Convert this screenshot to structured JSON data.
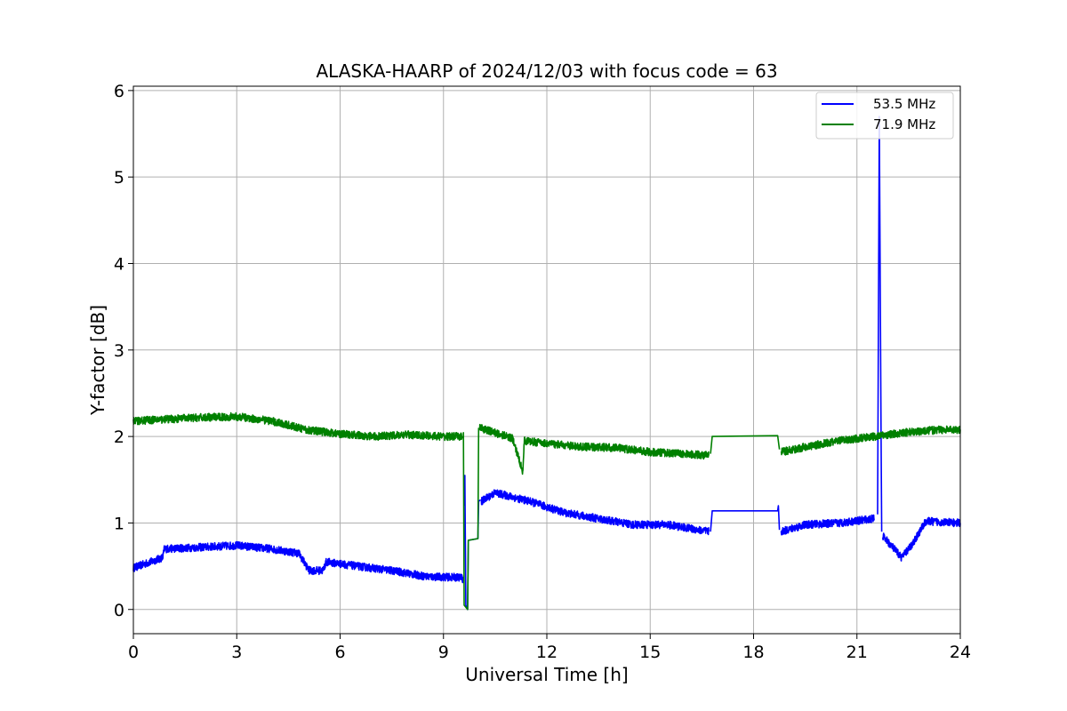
{
  "chart_data": {
    "type": "line",
    "title": "ALASKA-HAARP of 2024/12/03 with focus code = 63",
    "xlabel": "Universal Time [h]",
    "ylabel": "Y-factor [dB]",
    "xlim": [
      0,
      24
    ],
    "ylim": [
      -0.28,
      6.05
    ],
    "xticks": [
      0,
      3,
      6,
      9,
      12,
      15,
      18,
      21,
      24
    ],
    "yticks": [
      0,
      1,
      2,
      3,
      4,
      5,
      6
    ],
    "grid": true,
    "legend_position": "top-right",
    "series": [
      {
        "name": "53.5 MHz",
        "color": "#0000ff",
        "noise": 0.045,
        "points": [
          [
            0,
            0.48
          ],
          [
            0.5,
            0.55
          ],
          [
            0.85,
            0.6
          ],
          [
            0.9,
            0.7
          ],
          [
            2,
            0.72
          ],
          [
            3,
            0.74
          ],
          [
            4,
            0.7
          ],
          [
            4.8,
            0.65
          ],
          [
            5.1,
            0.45
          ],
          [
            5.5,
            0.45
          ],
          [
            5.6,
            0.55
          ],
          [
            6.5,
            0.5
          ],
          [
            7.5,
            0.45
          ],
          [
            8.5,
            0.38
          ],
          [
            9.5,
            0.37
          ],
          [
            9.58,
            0.35
          ]
        ],
        "flat_segments": [
          [
            [
              9.6,
              1.2
            ],
            [
              9.62,
              1.55
            ],
            [
              9.65,
              0.05
            ],
            [
              9.7,
              0.0
            ],
            [
              9.72,
              0.8
            ],
            [
              10,
              0.82
            ],
            [
              10.02,
              1.25
            ],
            [
              10.08,
              1.27
            ]
          ],
          [
            [
              16.75,
              0.9
            ],
            [
              16.8,
              1.14
            ],
            [
              18.7,
              1.14
            ],
            [
              18.72,
              1.2
            ],
            [
              18.75,
              0.92
            ]
          ],
          [
            [
              21.6,
              1.1
            ],
            [
              21.65,
              5.7
            ],
            [
              21.7,
              2.0
            ],
            [
              21.72,
              0.9
            ]
          ]
        ],
        "points_after": [
          [
            [
              10.1,
              1.25
            ],
            [
              10.5,
              1.35
            ],
            [
              11.5,
              1.25
            ],
            [
              12.5,
              1.12
            ],
            [
              13.5,
              1.05
            ],
            [
              14.5,
              0.98
            ],
            [
              15.5,
              0.98
            ],
            [
              16.7,
              0.9
            ]
          ],
          [
            [
              18.8,
              0.9
            ],
            [
              19.5,
              0.98
            ],
            [
              20.5,
              1.0
            ],
            [
              21.5,
              1.05
            ]
          ],
          [
            [
              21.75,
              0.85
            ],
            [
              22.3,
              0.6
            ],
            [
              22.6,
              0.75
            ],
            [
              23,
              1.02
            ],
            [
              24,
              1.0
            ]
          ]
        ]
      },
      {
        "name": "71.9 MHz",
        "color": "#008000",
        "noise": 0.045,
        "points": [
          [
            0,
            2.18
          ],
          [
            1,
            2.2
          ],
          [
            2,
            2.22
          ],
          [
            3,
            2.23
          ],
          [
            4,
            2.18
          ],
          [
            5,
            2.08
          ],
          [
            6,
            2.03
          ],
          [
            7,
            2.0
          ],
          [
            8,
            2.02
          ],
          [
            9,
            2.0
          ],
          [
            9.55,
            2.0
          ]
        ],
        "flat_segments": [
          [
            [
              9.58,
              2.05
            ],
            [
              9.6,
              0.05
            ],
            [
              9.7,
              0.0
            ],
            [
              9.72,
              0.8
            ],
            [
              10,
              0.82
            ],
            [
              10.02,
              2.1
            ]
          ],
          [
            [
              16.75,
              1.8
            ],
            [
              16.8,
              2.0
            ],
            [
              18.7,
              2.01
            ],
            [
              18.75,
              1.85
            ]
          ]
        ],
        "points_after": [
          [
            [
              10.05,
              2.1
            ],
            [
              11,
              1.98
            ],
            [
              11.3,
              1.6
            ],
            [
              11.35,
              1.95
            ],
            [
              12,
              1.92
            ],
            [
              13,
              1.88
            ],
            [
              14,
              1.87
            ],
            [
              15,
              1.82
            ],
            [
              16,
              1.8
            ],
            [
              16.7,
              1.78
            ]
          ],
          [
            [
              18.8,
              1.82
            ],
            [
              19.5,
              1.88
            ],
            [
              20.5,
              1.95
            ],
            [
              21.5,
              2.0
            ],
            [
              22.5,
              2.05
            ],
            [
              23.5,
              2.08
            ],
            [
              24,
              2.08
            ]
          ]
        ]
      }
    ]
  }
}
